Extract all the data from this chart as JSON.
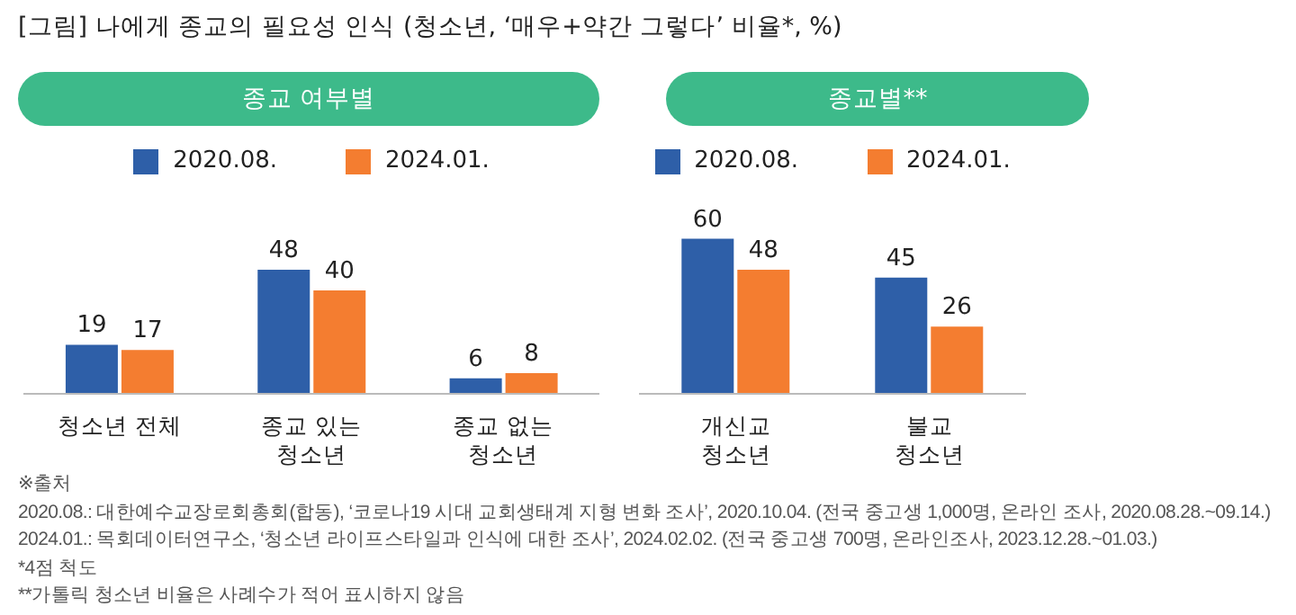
{
  "chart_data": [
    {
      "type": "bar",
      "title": "[그림] 나에게 종교의 필요성 인식 (청소년, ‘매우+약간 그렇다’ 비율*, %)",
      "subtitle": "종교 여부별",
      "categories": [
        "청소년 전체",
        "종교 있는\n청소년",
        "종교 없는\n청소년"
      ],
      "series": [
        {
          "name": "2020.08.",
          "color": "#2e5fa8",
          "values": [
            19,
            48,
            6
          ]
        },
        {
          "name": "2024.01.",
          "color": "#f47d30",
          "values": [
            17,
            40,
            8
          ]
        }
      ],
      "data_labels": true,
      "legend": "top",
      "grid": false,
      "annotations": [
        "※출처",
        "2020.08.: 대한예수교장로회총회(합동), ‘코로나19 시대 교회생태계 지형 변화 조사’, 2020.10.04. (전국 중고생 1,000명, 온라인 조사, 2020.08.28.~09.14.)",
        "2024.01.: 목회데이터연구소, ‘청소년 라이프스타일과 인식에 대한 조사’, 2024.02.02. (전국 중고생 700명, 온라인조사, 2023.12.28.~01.03.)",
        "*4점 척도",
        "**가톨릭 청소년 비율은 사례수가 적어 표시하지 않음"
      ]
    },
    {
      "type": "bar",
      "subtitle": "종교별**",
      "categories": [
        "개신교\n청소년",
        "불교\n청소년"
      ],
      "series": [
        {
          "name": "2020.08.",
          "color": "#2e5fa8",
          "values": [
            60,
            45
          ]
        },
        {
          "name": "2024.01.",
          "color": "#f47d30",
          "values": [
            48,
            26
          ]
        }
      ],
      "data_labels": true,
      "legend": "top",
      "grid": false
    }
  ]
}
